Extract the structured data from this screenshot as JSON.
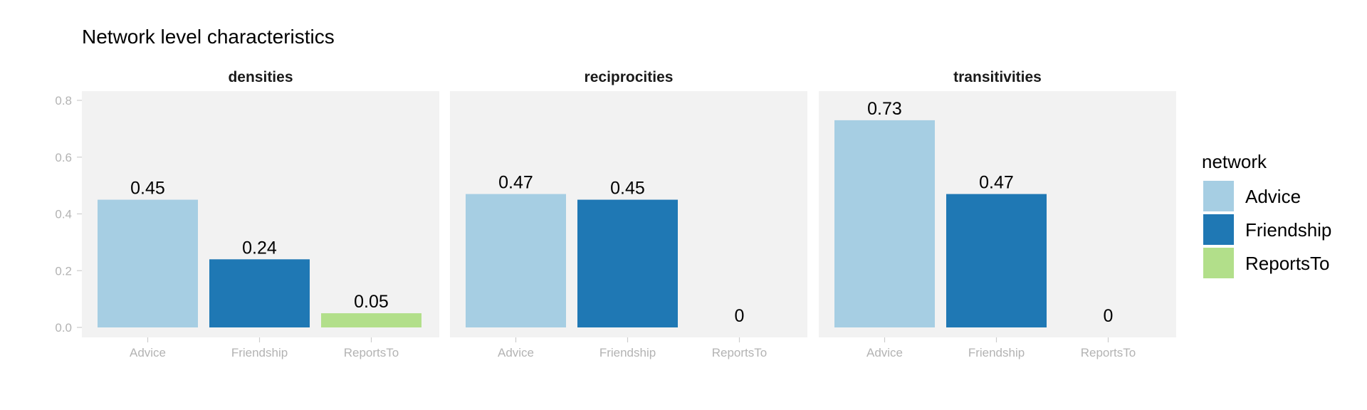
{
  "chart_data": {
    "type": "bar",
    "title": "Network level characteristics",
    "categories": [
      "Advice",
      "Friendship",
      "ReportsTo"
    ],
    "ylim": [
      0,
      0.8
    ],
    "yticks": [
      "0.0",
      "0.2",
      "0.4",
      "0.6",
      "0.8"
    ],
    "grid": false,
    "legend": {
      "title": "network",
      "position": "right",
      "entries": [
        "Advice",
        "Friendship",
        "ReportsTo"
      ]
    },
    "colors": {
      "Advice": "#a6cee3",
      "Friendship": "#1f78b4",
      "ReportsTo": "#b2df8a"
    },
    "panels": [
      {
        "name": "densities",
        "values": [
          0.45,
          0.24,
          0.05
        ],
        "labels": [
          "0.45",
          "0.24",
          "0.05"
        ]
      },
      {
        "name": "reciprocities",
        "values": [
          0.47,
          0.45,
          0
        ],
        "labels": [
          "0.47",
          "0.45",
          "0"
        ]
      },
      {
        "name": "transitivities",
        "values": [
          0.73,
          0.47,
          0
        ],
        "labels": [
          "0.73",
          "0.47",
          "0"
        ]
      }
    ]
  }
}
